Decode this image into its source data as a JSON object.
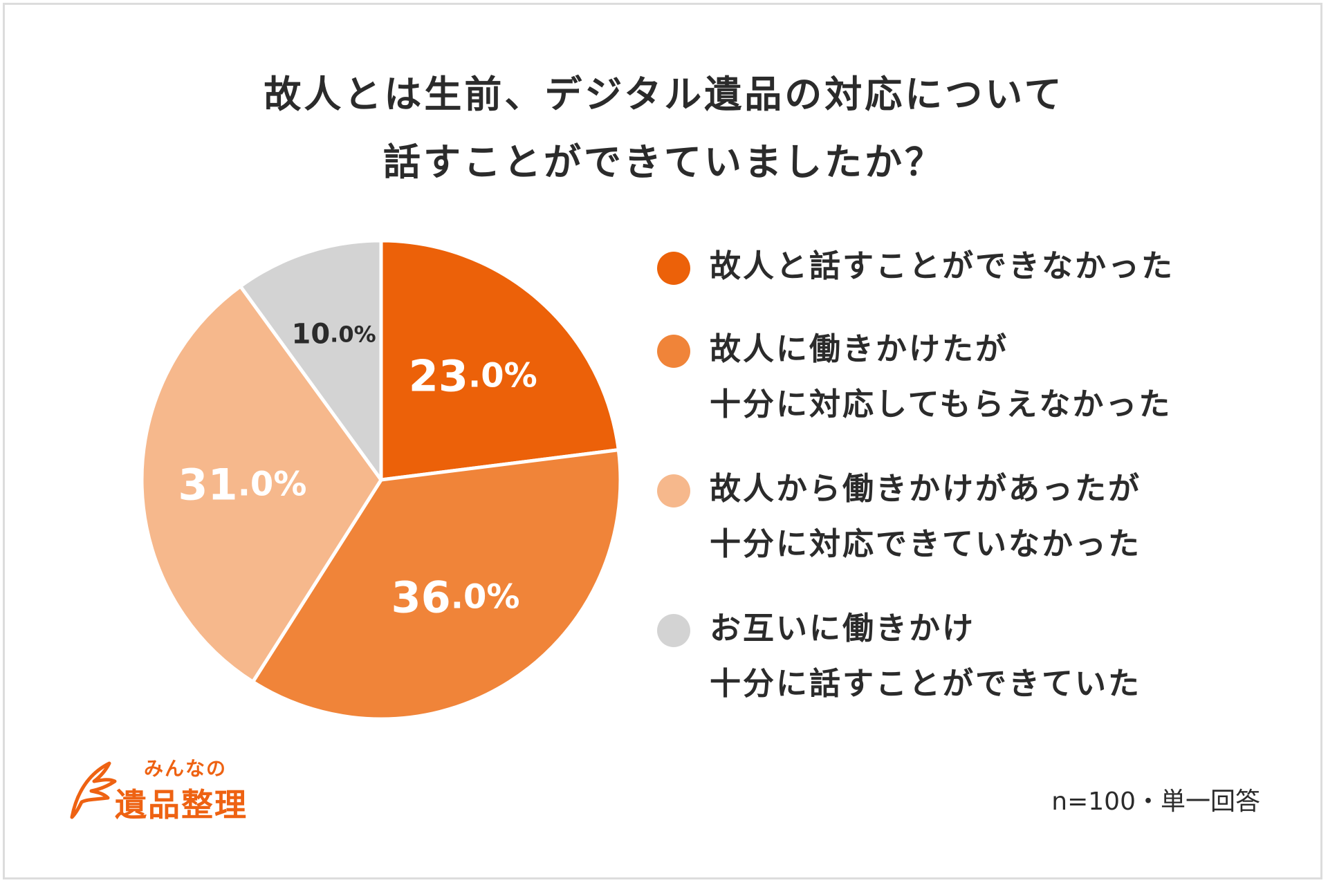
{
  "title": {
    "line1": "故人とは生前、デジタル遺品の対応について",
    "line2": "話すことができていましたか？"
  },
  "chart_data": {
    "type": "pie",
    "title": "故人とは生前、デジタル遺品の対応について話すことができていましたか？",
    "slices": [
      {
        "label": "故人と話すことができなかった",
        "value": 23.0,
        "display": "23.0%",
        "color": "#ec6109",
        "label_color": "#ffffff"
      },
      {
        "label": "故人に働きかけたが十分に対応してもらえなかった",
        "value": 36.0,
        "display": "36.0%",
        "color": "#f08439",
        "label_color": "#ffffff"
      },
      {
        "label": "故人から働きかけがあったが十分に対応できていなかった",
        "value": 31.0,
        "display": "31.0%",
        "color": "#f6b88c",
        "label_color": "#ffffff"
      },
      {
        "label": "お互いに働きかけ十分に話すことができていた",
        "value": 10.0,
        "display": "10.0%",
        "color": "#d3d3d3",
        "label_color": "#2b2b2b"
      }
    ]
  },
  "legend": [
    {
      "lines": [
        "故人と話すことができなかった"
      ],
      "color": "#ec6109"
    },
    {
      "lines": [
        "故人に働きかけたが",
        "十分に対応してもらえなかった"
      ],
      "color": "#f08439"
    },
    {
      "lines": [
        "故人から働きかけがあったが",
        "十分に対応できていなかった"
      ],
      "color": "#f6b88c"
    },
    {
      "lines": [
        "お互いに働きかけ",
        "十分に話すことができていた"
      ],
      "color": "#d3d3d3"
    }
  ],
  "logo": {
    "small": "みんなの",
    "big": "遺品整理",
    "color": "#ee6212"
  },
  "note": "n=100・単一回答"
}
